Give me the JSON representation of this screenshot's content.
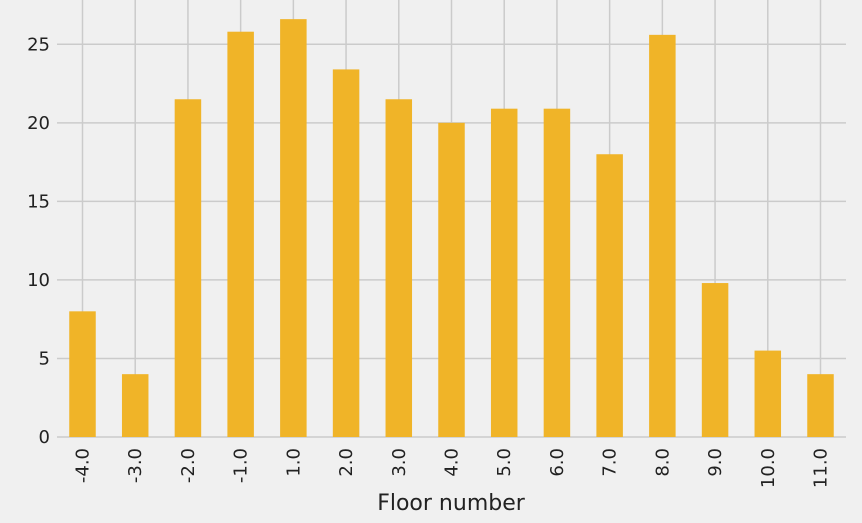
{
  "chart_data": {
    "type": "bar",
    "title": "",
    "xlabel": "Floor number",
    "ylabel": "",
    "categories": [
      "-4.0",
      "-3.0",
      "-2.0",
      "-1.0",
      "1.0",
      "2.0",
      "3.0",
      "4.0",
      "5.0",
      "6.0",
      "7.0",
      "8.0",
      "9.0",
      "10.0",
      "11.0"
    ],
    "values": [
      8,
      4,
      21.5,
      25.8,
      26.6,
      23.4,
      21.5,
      20,
      20.9,
      20.9,
      18,
      25.6,
      9.8,
      5.5,
      4
    ],
    "ylim": [
      0,
      27.5
    ],
    "yticks": [
      0,
      5,
      10,
      15,
      20,
      25
    ],
    "grid": true,
    "colors": {
      "bar": "#f0b428",
      "background": "#f0f0f0",
      "grid": "#cbcbcb",
      "text": "#222222"
    }
  }
}
